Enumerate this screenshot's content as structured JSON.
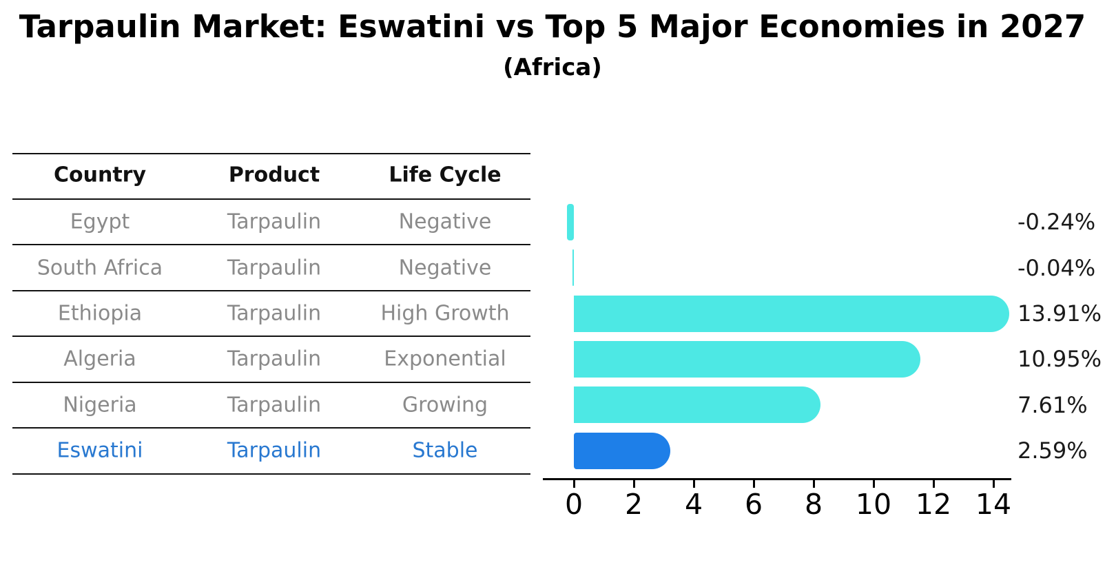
{
  "header": {
    "title": "Tarpaulin Market: Eswatini vs Top 5 Major Economies in 2027",
    "subtitle": "(Africa)"
  },
  "table": {
    "columns": [
      "Country",
      "Product",
      "Life Cycle"
    ]
  },
  "chart_data": {
    "type": "bar",
    "orientation": "horizontal",
    "title": "Tarpaulin Market: Eswatini vs Top 5 Major Economies in 2027 (Africa)",
    "xlabel": "",
    "ylabel": "",
    "xlim": [
      -1.05,
      14.6
    ],
    "x_ticks": [
      0,
      2,
      4,
      6,
      8,
      10,
      12,
      14
    ],
    "grid": false,
    "legend": "none",
    "rows": [
      {
        "country": "Egypt",
        "product": "Tarpaulin",
        "life_cycle": "Negative",
        "value": -0.24,
        "value_label": "-0.24%",
        "highlight": false
      },
      {
        "country": "South Africa",
        "product": "Tarpaulin",
        "life_cycle": "Negative",
        "value": -0.04,
        "value_label": "-0.04%",
        "highlight": false
      },
      {
        "country": "Ethiopia",
        "product": "Tarpaulin",
        "life_cycle": "High Growth",
        "value": 13.91,
        "value_label": "13.91%",
        "highlight": false
      },
      {
        "country": "Algeria",
        "product": "Tarpaulin",
        "life_cycle": "Exponential",
        "value": 10.95,
        "value_label": "10.95%",
        "highlight": false
      },
      {
        "country": "Nigeria",
        "product": "Tarpaulin",
        "life_cycle": "Growing",
        "value": 7.61,
        "value_label": "7.61%",
        "highlight": false
      },
      {
        "country": "Eswatini",
        "product": "Tarpaulin",
        "life_cycle": "Stable",
        "value": 2.59,
        "value_label": "2.59%",
        "highlight": true
      }
    ],
    "colors": {
      "bar": "#4DE8E4",
      "highlight_bar": "#1E7FE8",
      "highlight_text": "#2878D0",
      "row_text": "#8A8A8A",
      "axis": "#000000"
    }
  }
}
